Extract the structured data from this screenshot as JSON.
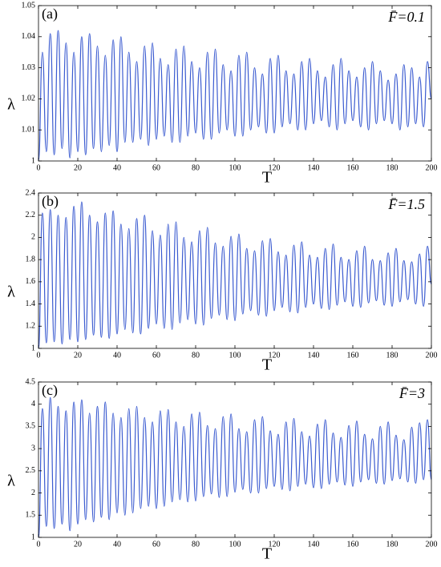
{
  "chart_data": [
    {
      "type": "line",
      "panel_label": "(a)",
      "annotation": "F̄=0.1",
      "xlabel": "T",
      "ylabel": "λ",
      "color": "#3b5bd0",
      "xlim": [
        0,
        200
      ],
      "xticks": [
        0,
        20,
        40,
        60,
        80,
        100,
        120,
        140,
        160,
        180,
        200
      ],
      "ylim": [
        1,
        1.05
      ],
      "yticks": [
        1,
        1.01,
        1.02,
        1.03,
        1.04,
        1.05
      ],
      "x": [
        0,
        2,
        4,
        6,
        8,
        10,
        12,
        14,
        16,
        18,
        20,
        22,
        24,
        26,
        28,
        30,
        32,
        34,
        36,
        38,
        40,
        42,
        44,
        46,
        48,
        50,
        52,
        54,
        56,
        58,
        60,
        62,
        64,
        66,
        68,
        70,
        72,
        74,
        76,
        78,
        80,
        82,
        84,
        86,
        88,
        90,
        92,
        94,
        96,
        98,
        100,
        102,
        104,
        106,
        108,
        110,
        112,
        114,
        116,
        118,
        120,
        122,
        124,
        126,
        128,
        130,
        132,
        134,
        136,
        138,
        140,
        142,
        144,
        146,
        148,
        150,
        152,
        154,
        156,
        158,
        160,
        162,
        164,
        166,
        168,
        170,
        172,
        174,
        176,
        178,
        180,
        182,
        184,
        186,
        188,
        190,
        192,
        194,
        196,
        198,
        200
      ],
      "values": [
        1.0,
        1.035,
        1.003,
        1.041,
        1.002,
        1.042,
        1.004,
        1.038,
        1.001,
        1.035,
        1.003,
        1.04,
        1.002,
        1.041,
        1.004,
        1.037,
        1.003,
        1.034,
        1.005,
        1.039,
        1.003,
        1.04,
        1.006,
        1.035,
        1.006,
        1.032,
        1.007,
        1.037,
        1.005,
        1.038,
        1.007,
        1.033,
        1.008,
        1.031,
        1.006,
        1.036,
        1.006,
        1.037,
        1.008,
        1.032,
        1.009,
        1.03,
        1.007,
        1.035,
        1.007,
        1.036,
        1.009,
        1.031,
        1.01,
        1.029,
        1.008,
        1.034,
        1.008,
        1.035,
        1.01,
        1.03,
        1.011,
        1.028,
        1.009,
        1.033,
        1.009,
        1.034,
        1.011,
        1.029,
        1.012,
        1.028,
        1.01,
        1.032,
        1.01,
        1.033,
        1.012,
        1.029,
        1.013,
        1.027,
        1.011,
        1.031,
        1.01,
        1.033,
        1.012,
        1.029,
        1.013,
        1.027,
        1.011,
        1.03,
        1.01,
        1.032,
        1.012,
        1.029,
        1.013,
        1.026,
        1.012,
        1.028,
        1.01,
        1.031,
        1.011,
        1.03,
        1.012,
        1.027,
        1.011,
        1.032,
        1.02
      ]
    },
    {
      "type": "line",
      "panel_label": "(b)",
      "annotation": "F̄=1.5",
      "xlabel": "T",
      "ylabel": "λ",
      "color": "#3b5bd0",
      "xlim": [
        0,
        200
      ],
      "xticks": [
        0,
        20,
        40,
        60,
        80,
        100,
        120,
        140,
        160,
        180,
        200
      ],
      "ylim": [
        1,
        2.4
      ],
      "yticks": [
        1,
        1.2,
        1.4,
        1.6,
        1.8,
        2,
        2.2,
        2.4
      ],
      "x": [
        0,
        2,
        4,
        6,
        8,
        10,
        12,
        14,
        16,
        18,
        20,
        22,
        24,
        26,
        28,
        30,
        32,
        34,
        36,
        38,
        40,
        42,
        44,
        46,
        48,
        50,
        52,
        54,
        56,
        58,
        60,
        62,
        64,
        66,
        68,
        70,
        72,
        74,
        76,
        78,
        80,
        82,
        84,
        86,
        88,
        90,
        92,
        94,
        96,
        98,
        100,
        102,
        104,
        106,
        108,
        110,
        112,
        114,
        116,
        118,
        120,
        122,
        124,
        126,
        128,
        130,
        132,
        134,
        136,
        138,
        140,
        142,
        144,
        146,
        148,
        150,
        152,
        154,
        156,
        158,
        160,
        162,
        164,
        166,
        168,
        170,
        172,
        174,
        176,
        178,
        180,
        182,
        184,
        186,
        188,
        190,
        192,
        194,
        196,
        198,
        200
      ],
      "values": [
        1.0,
        2.22,
        1.05,
        2.25,
        1.06,
        2.2,
        1.04,
        2.18,
        1.08,
        2.28,
        1.06,
        2.32,
        1.08,
        2.2,
        1.12,
        2.14,
        1.1,
        2.22,
        1.09,
        2.24,
        1.13,
        2.12,
        1.17,
        2.08,
        1.14,
        2.17,
        1.13,
        2.2,
        1.18,
        2.06,
        1.22,
        2.02,
        1.18,
        2.12,
        1.17,
        2.14,
        1.23,
        2.0,
        1.26,
        1.96,
        1.22,
        2.06,
        1.21,
        2.09,
        1.27,
        1.95,
        1.3,
        1.92,
        1.26,
        2.01,
        1.25,
        2.03,
        1.31,
        1.9,
        1.34,
        1.88,
        1.3,
        1.97,
        1.29,
        1.99,
        1.34,
        1.87,
        1.37,
        1.84,
        1.33,
        1.93,
        1.32,
        1.96,
        1.37,
        1.84,
        1.4,
        1.82,
        1.36,
        1.9,
        1.35,
        1.94,
        1.39,
        1.82,
        1.42,
        1.8,
        1.38,
        1.88,
        1.37,
        1.92,
        1.41,
        1.8,
        1.43,
        1.79,
        1.39,
        1.86,
        1.38,
        1.9,
        1.42,
        1.79,
        1.44,
        1.78,
        1.4,
        1.85,
        1.38,
        1.92,
        1.58
      ]
    },
    {
      "type": "line",
      "panel_label": "(c)",
      "annotation": "F̄=3",
      "xlabel": "T",
      "ylabel": "λ",
      "color": "#3b5bd0",
      "xlim": [
        0,
        200
      ],
      "xticks": [
        0,
        20,
        40,
        60,
        80,
        100,
        120,
        140,
        160,
        180,
        200
      ],
      "ylim": [
        1,
        4.5
      ],
      "yticks": [
        1,
        1.5,
        2,
        2.5,
        3,
        3.5,
        4,
        4.5
      ],
      "x": [
        0,
        2,
        4,
        6,
        8,
        10,
        12,
        14,
        16,
        18,
        20,
        22,
        24,
        26,
        28,
        30,
        32,
        34,
        36,
        38,
        40,
        42,
        44,
        46,
        48,
        50,
        52,
        54,
        56,
        58,
        60,
        62,
        64,
        66,
        68,
        70,
        72,
        74,
        76,
        78,
        80,
        82,
        84,
        86,
        88,
        90,
        92,
        94,
        96,
        98,
        100,
        102,
        104,
        106,
        108,
        110,
        112,
        114,
        116,
        118,
        120,
        122,
        124,
        126,
        128,
        130,
        132,
        134,
        136,
        138,
        140,
        142,
        144,
        146,
        148,
        150,
        152,
        154,
        156,
        158,
        160,
        162,
        164,
        166,
        168,
        170,
        172,
        174,
        176,
        178,
        180,
        182,
        184,
        186,
        188,
        190,
        192,
        194,
        196,
        198,
        200
      ],
      "values": [
        1.0,
        3.9,
        1.25,
        4.15,
        1.2,
        3.95,
        1.3,
        3.85,
        1.15,
        4.05,
        1.3,
        4.1,
        1.4,
        3.8,
        1.35,
        3.95,
        1.45,
        4.05,
        1.4,
        3.8,
        1.55,
        3.7,
        1.5,
        3.9,
        1.55,
        3.95,
        1.65,
        3.7,
        1.7,
        3.6,
        1.65,
        3.85,
        1.7,
        3.88,
        1.8,
        3.6,
        1.85,
        3.5,
        1.8,
        3.78,
        1.82,
        3.82,
        1.92,
        3.52,
        1.98,
        3.45,
        1.9,
        3.72,
        1.92,
        3.78,
        2.02,
        3.45,
        2.08,
        3.38,
        2.0,
        3.65,
        2.0,
        3.72,
        2.1,
        3.4,
        2.15,
        3.32,
        2.08,
        3.6,
        2.05,
        3.68,
        2.15,
        3.38,
        2.2,
        3.28,
        2.12,
        3.55,
        2.1,
        3.65,
        2.2,
        3.35,
        2.25,
        3.25,
        2.18,
        3.52,
        2.15,
        3.62,
        2.25,
        3.32,
        2.3,
        3.22,
        2.22,
        3.5,
        2.2,
        3.6,
        2.28,
        3.3,
        2.32,
        3.2,
        2.25,
        3.48,
        2.22,
        3.58,
        2.3,
        3.65,
        2.3
      ]
    }
  ]
}
